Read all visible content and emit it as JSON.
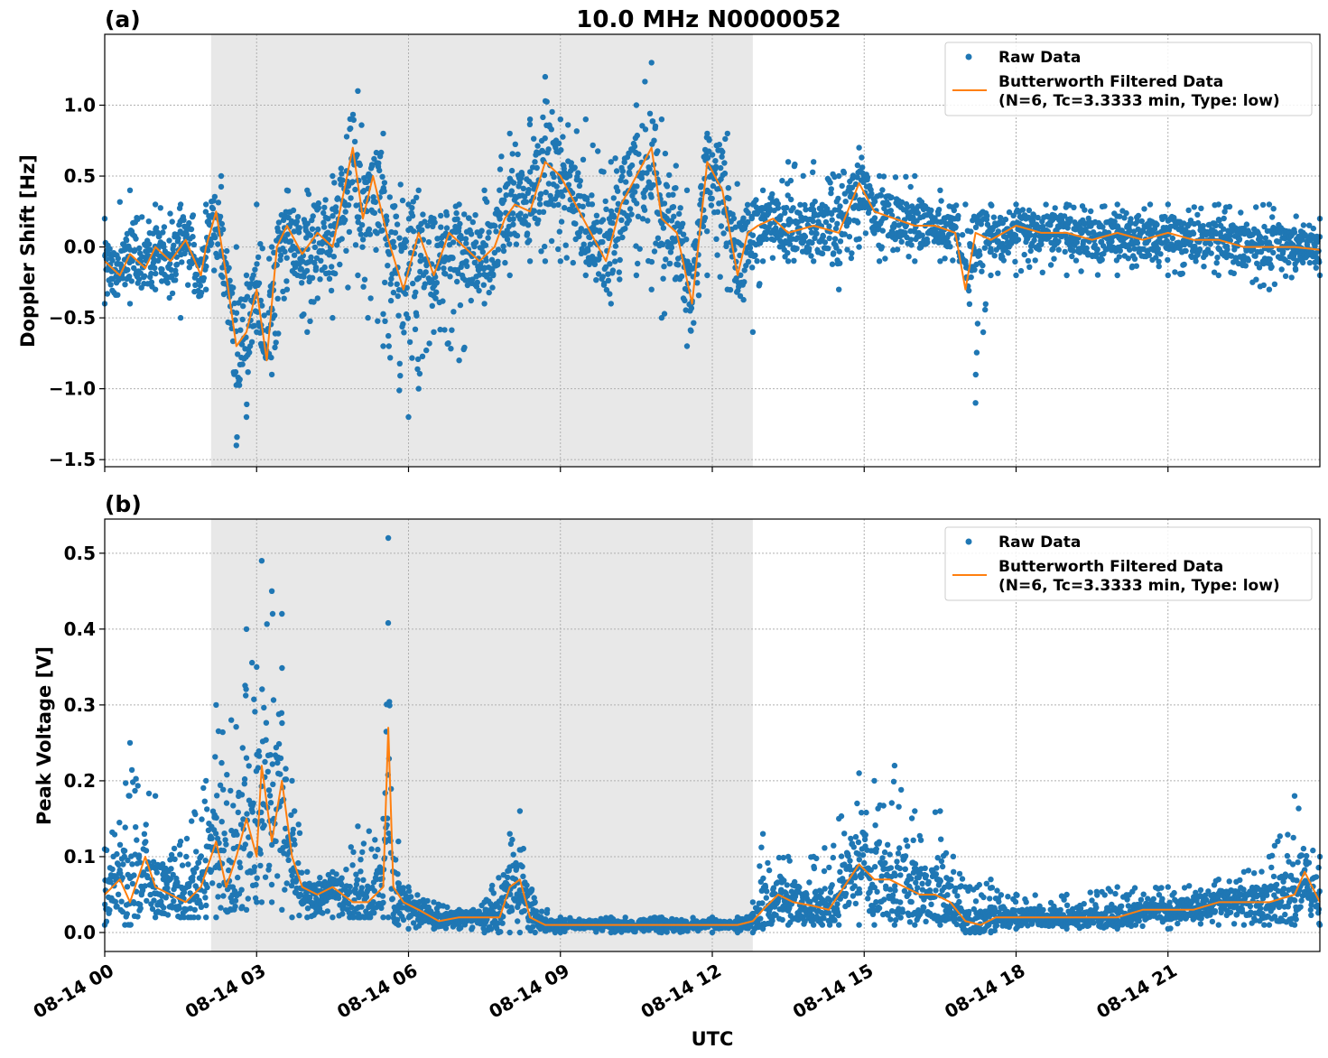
{
  "figure": {
    "title": "10.0 MHz N0000052",
    "xlabel": "UTC",
    "x_tick_labels": [
      "08-14 00",
      "08-14 03",
      "08-14 06",
      "08-14 09",
      "08-14 12",
      "08-14 15",
      "08-14 18",
      "08-14 21"
    ]
  },
  "colors": {
    "raw": "#1f77b4",
    "filtered": "#ff7f0e",
    "shade": "#e8e8e8"
  },
  "legend": {
    "raw": "Raw Data",
    "filtered_line1": "Butterworth Filtered Data",
    "filtered_line2": "(N=6, Tc=3.3333 min, Type: low)"
  },
  "chart_data": [
    {
      "type": "scatter",
      "panel_label": "(a)",
      "title": "10.0 MHz N0000052",
      "xlabel": "",
      "ylabel": "Doppler Shift [Hz]",
      "x_unit": "hours UTC since 08-14 00:00",
      "xlim": [
        0,
        24
      ],
      "ylim": [
        -1.55,
        1.5
      ],
      "yticks": [
        -1.5,
        -1.0,
        -0.5,
        0.0,
        0.5,
        1.0
      ],
      "ytick_labels": [
        "−1.5",
        "−1.0",
        "−0.5",
        "0.0",
        "0.5",
        "1.0"
      ],
      "shaded_region": [
        2.1,
        12.8
      ],
      "grid": true,
      "legend_position": "top-right",
      "series": [
        {
          "name": "Butterworth Filtered Data (N=6, Tc=3.3333 min, Type: low)",
          "x": [
            0.0,
            0.3,
            0.5,
            0.8,
            1.0,
            1.3,
            1.6,
            1.9,
            2.0,
            2.2,
            2.4,
            2.6,
            2.8,
            3.0,
            3.2,
            3.4,
            3.6,
            3.9,
            4.2,
            4.5,
            4.9,
            5.1,
            5.3,
            5.6,
            5.9,
            6.2,
            6.5,
            6.8,
            7.1,
            7.4,
            7.7,
            7.9,
            8.1,
            8.4,
            8.7,
            9.0,
            9.3,
            9.6,
            9.9,
            10.2,
            10.5,
            10.8,
            11.0,
            11.3,
            11.6,
            11.9,
            12.2,
            12.5,
            12.7,
            12.9,
            13.2,
            13.5,
            14.0,
            14.5,
            14.9,
            15.2,
            15.6,
            16.0,
            16.4,
            16.8,
            17.0,
            17.2,
            17.5,
            18.0,
            18.5,
            19.0,
            19.5,
            20.0,
            20.5,
            21.0,
            21.5,
            22.0,
            22.5,
            23.0,
            23.5,
            24.0
          ],
          "y": [
            -0.1,
            -0.2,
            -0.05,
            -0.15,
            0.0,
            -0.1,
            0.05,
            -0.2,
            0.0,
            0.25,
            -0.2,
            -0.7,
            -0.6,
            -0.3,
            -0.8,
            0.0,
            0.15,
            -0.05,
            0.1,
            0.0,
            0.7,
            0.2,
            0.5,
            0.05,
            -0.3,
            0.1,
            -0.2,
            0.1,
            0.0,
            -0.1,
            0.0,
            0.2,
            0.3,
            0.25,
            0.6,
            0.5,
            0.3,
            0.1,
            -0.1,
            0.3,
            0.5,
            0.7,
            0.2,
            0.1,
            -0.4,
            0.6,
            0.4,
            -0.2,
            0.1,
            0.15,
            0.2,
            0.1,
            0.15,
            0.1,
            0.45,
            0.25,
            0.2,
            0.15,
            0.15,
            0.1,
            -0.3,
            0.1,
            0.05,
            0.15,
            0.1,
            0.1,
            0.05,
            0.1,
            0.05,
            0.1,
            0.05,
            0.05,
            0.0,
            0.0,
            0.0,
            -0.02
          ]
        },
        {
          "name": "Raw Data",
          "x": [
            0.0,
            0.5,
            1.0,
            1.5,
            2.0,
            2.3,
            2.6,
            2.8,
            3.0,
            3.3,
            3.6,
            4.0,
            4.5,
            5.0,
            5.2,
            5.5,
            6.0,
            6.2,
            6.5,
            7.0,
            7.5,
            8.0,
            8.4,
            8.7,
            9.0,
            9.5,
            10.0,
            10.5,
            10.8,
            11.0,
            11.5,
            11.9,
            12.3,
            12.8,
            13.0,
            13.5,
            14.0,
            14.5,
            14.9,
            15.3,
            16.0,
            16.5,
            17.0,
            17.2,
            17.5,
            18.0,
            19.0,
            20.0,
            21.0,
            22.0,
            23.0,
            24.0
          ],
          "y_upper": [
            0.2,
            0.4,
            0.3,
            0.3,
            0.3,
            0.5,
            0.0,
            -0.2,
            0.3,
            0.0,
            0.4,
            0.4,
            0.5,
            1.1,
            0.5,
            0.8,
            0.3,
            0.4,
            0.2,
            0.3,
            0.4,
            0.8,
            0.9,
            1.2,
            0.9,
            0.9,
            0.6,
            1.0,
            1.3,
            0.9,
            0.4,
            0.8,
            0.8,
            0.3,
            0.4,
            0.6,
            0.6,
            0.5,
            0.7,
            0.5,
            0.5,
            0.4,
            0.3,
            0.2,
            0.3,
            0.3,
            0.3,
            0.3,
            0.3,
            0.3,
            0.3,
            0.2
          ],
          "y_lower": [
            -0.4,
            -0.4,
            -0.3,
            -0.5,
            -0.3,
            -0.2,
            -1.4,
            -1.2,
            -0.6,
            -0.9,
            -0.3,
            -0.6,
            -0.5,
            -0.2,
            -0.5,
            -0.7,
            -1.2,
            -1.0,
            -0.6,
            -0.8,
            -0.4,
            -0.2,
            -0.1,
            -0.1,
            -0.1,
            -0.2,
            -0.4,
            -0.2,
            -0.3,
            -0.5,
            -0.7,
            -0.2,
            -0.3,
            -0.6,
            -0.1,
            -0.1,
            -0.1,
            -0.3,
            0.0,
            -0.1,
            -0.1,
            -0.1,
            -0.1,
            -1.1,
            -0.2,
            -0.2,
            -0.2,
            -0.2,
            -0.2,
            -0.2,
            -0.3,
            -0.2
          ]
        }
      ]
    },
    {
      "type": "scatter",
      "panel_label": "(b)",
      "title": "",
      "xlabel": "UTC",
      "ylabel": "Peak Voltage [V]",
      "x_unit": "hours UTC since 08-14 00:00",
      "xlim": [
        0,
        24
      ],
      "ylim": [
        -0.025,
        0.545
      ],
      "yticks": [
        0.0,
        0.1,
        0.2,
        0.3,
        0.4,
        0.5
      ],
      "ytick_labels": [
        "0.0",
        "0.1",
        "0.2",
        "0.3",
        "0.4",
        "0.5"
      ],
      "shaded_region": [
        2.1,
        12.8
      ],
      "grid": true,
      "legend_position": "top-right",
      "series": [
        {
          "name": "Butterworth Filtered Data (N=6, Tc=3.3333 min, Type: low)",
          "x": [
            0.0,
            0.3,
            0.5,
            0.8,
            1.0,
            1.3,
            1.6,
            1.9,
            2.0,
            2.2,
            2.4,
            2.6,
            2.8,
            3.0,
            3.1,
            3.3,
            3.5,
            3.7,
            3.9,
            4.2,
            4.5,
            4.9,
            5.2,
            5.5,
            5.6,
            5.7,
            5.9,
            6.2,
            6.6,
            7.0,
            7.4,
            7.8,
            8.0,
            8.2,
            8.4,
            8.7,
            9.0,
            9.5,
            10.0,
            10.5,
            11.0,
            11.5,
            12.0,
            12.5,
            12.8,
            13.0,
            13.3,
            13.6,
            14.0,
            14.3,
            14.6,
            14.9,
            15.2,
            15.5,
            15.8,
            16.1,
            16.4,
            16.7,
            17.0,
            17.3,
            17.6,
            18.0,
            18.5,
            19.0,
            19.5,
            20.0,
            20.5,
            21.0,
            21.5,
            22.0,
            22.5,
            23.0,
            23.5,
            23.7,
            24.0
          ],
          "y": [
            0.05,
            0.07,
            0.04,
            0.1,
            0.06,
            0.05,
            0.04,
            0.06,
            0.08,
            0.12,
            0.06,
            0.1,
            0.15,
            0.1,
            0.22,
            0.12,
            0.2,
            0.1,
            0.06,
            0.05,
            0.06,
            0.04,
            0.04,
            0.06,
            0.27,
            0.06,
            0.04,
            0.03,
            0.015,
            0.02,
            0.02,
            0.02,
            0.06,
            0.07,
            0.02,
            0.01,
            0.01,
            0.01,
            0.01,
            0.01,
            0.01,
            0.01,
            0.01,
            0.01,
            0.015,
            0.03,
            0.05,
            0.04,
            0.035,
            0.03,
            0.06,
            0.09,
            0.07,
            0.07,
            0.06,
            0.05,
            0.05,
            0.04,
            0.015,
            0.01,
            0.02,
            0.02,
            0.02,
            0.02,
            0.02,
            0.02,
            0.03,
            0.03,
            0.03,
            0.04,
            0.04,
            0.04,
            0.05,
            0.08,
            0.04
          ]
        },
        {
          "name": "Raw Data",
          "x": [
            0.0,
            0.5,
            1.0,
            1.5,
            2.0,
            2.2,
            2.5,
            2.8,
            3.0,
            3.1,
            3.3,
            3.5,
            3.7,
            4.0,
            4.5,
            5.0,
            5.5,
            5.6,
            5.8,
            6.0,
            6.5,
            7.0,
            7.5,
            8.0,
            8.2,
            8.5,
            9.0,
            10.0,
            11.0,
            12.0,
            12.5,
            12.8,
            13.0,
            13.5,
            14.0,
            14.5,
            14.9,
            15.2,
            15.6,
            16.0,
            16.5,
            17.0,
            17.5,
            18.0,
            19.0,
            20.0,
            21.0,
            22.0,
            22.5,
            23.0,
            23.5,
            24.0
          ],
          "y_upper": [
            0.11,
            0.25,
            0.18,
            0.12,
            0.2,
            0.3,
            0.28,
            0.4,
            0.35,
            0.49,
            0.45,
            0.42,
            0.2,
            0.08,
            0.08,
            0.14,
            0.15,
            0.52,
            0.12,
            0.06,
            0.04,
            0.03,
            0.04,
            0.13,
            0.16,
            0.04,
            0.02,
            0.02,
            0.02,
            0.02,
            0.02,
            0.04,
            0.13,
            0.1,
            0.1,
            0.15,
            0.21,
            0.2,
            0.22,
            0.16,
            0.16,
            0.06,
            0.07,
            0.05,
            0.05,
            0.06,
            0.06,
            0.07,
            0.08,
            0.1,
            0.18,
            0.1
          ],
          "y_lower": [
            0.01,
            0.01,
            0.02,
            0.02,
            0.02,
            0.02,
            0.03,
            0.03,
            0.04,
            0.04,
            0.04,
            0.03,
            0.02,
            0.02,
            0.02,
            0.02,
            0.02,
            0.02,
            0.01,
            0.005,
            0.005,
            0.005,
            0.0,
            0.0,
            0.0,
            0.0,
            0.0,
            0.0,
            0.0,
            0.0,
            0.0,
            0.0,
            0.005,
            0.01,
            0.01,
            0.01,
            0.01,
            0.01,
            0.01,
            0.01,
            0.01,
            0.0,
            0.0,
            0.005,
            0.005,
            0.005,
            0.005,
            0.01,
            0.01,
            0.01,
            0.01,
            0.01
          ]
        }
      ]
    }
  ]
}
